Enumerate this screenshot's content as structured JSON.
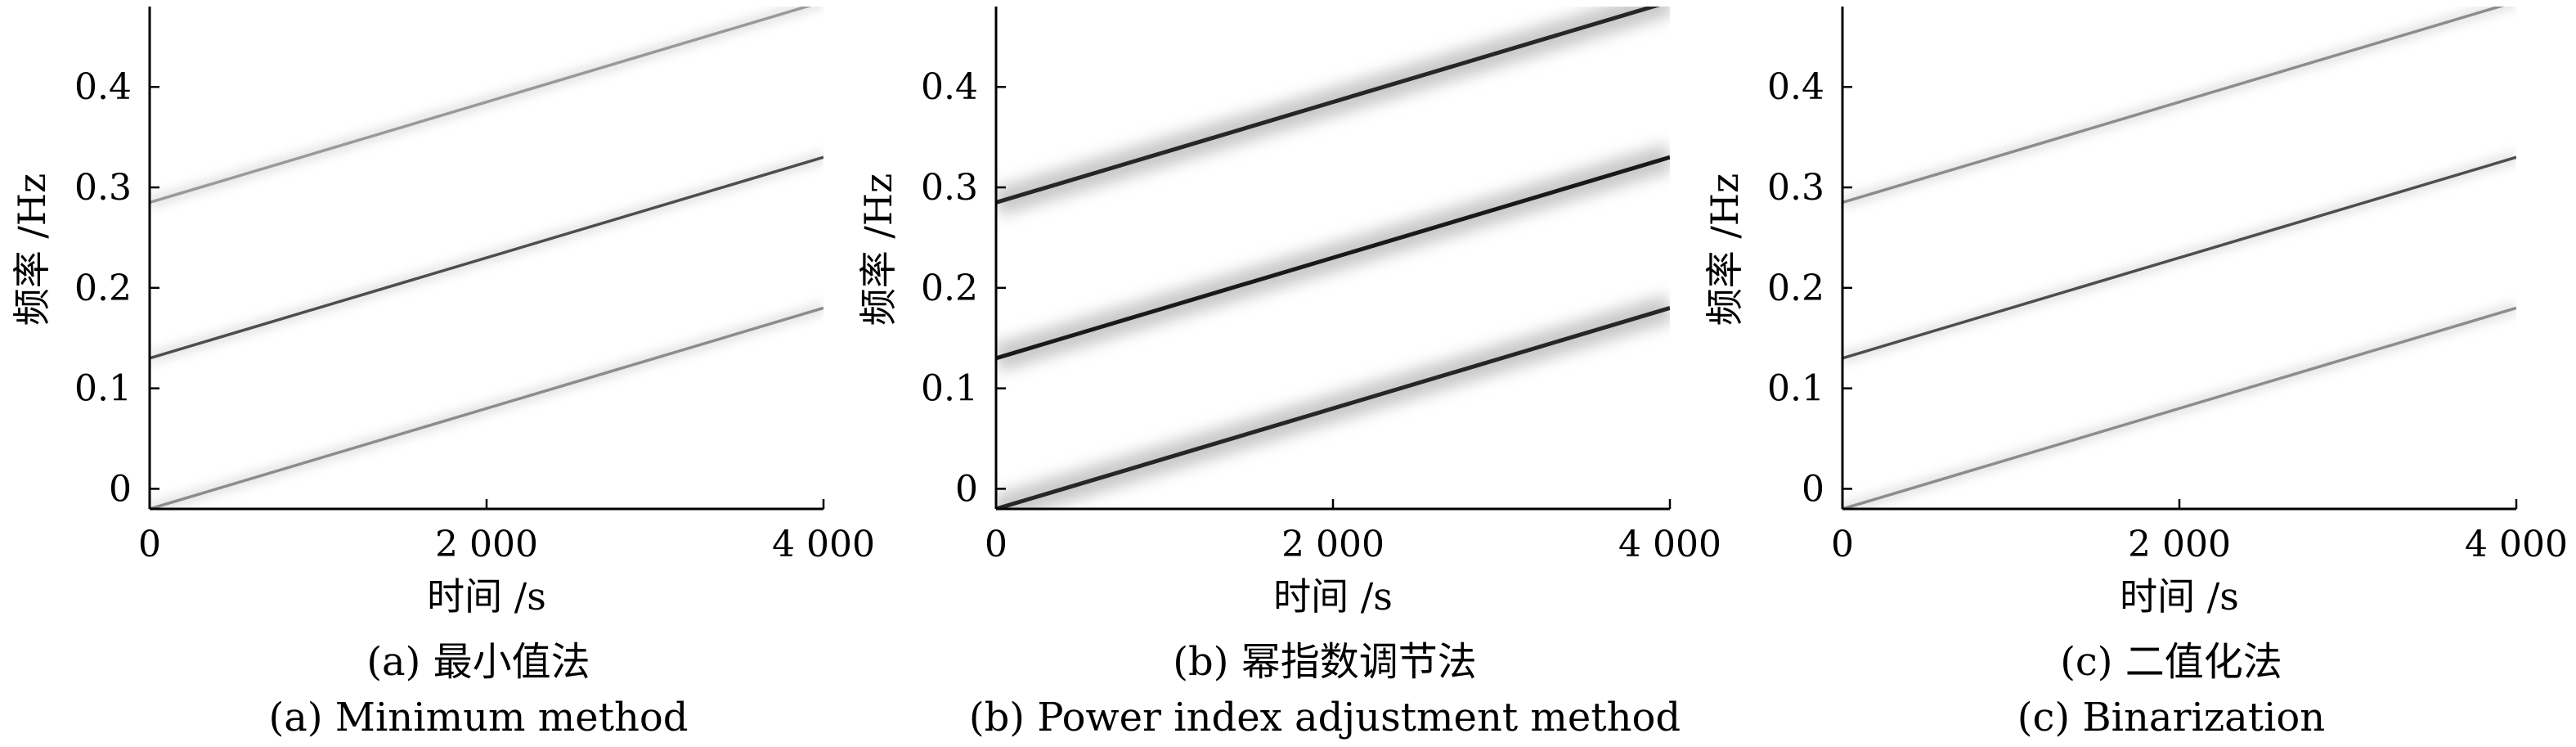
{
  "chart_data": [
    {
      "type": "line",
      "panel": "a",
      "caption_cn": "(a) 最小值法",
      "caption_en": "(a) Minimum method",
      "xlabel": "时间 /s",
      "ylabel": "频率 /Hz",
      "xlim": [
        0,
        4000
      ],
      "ylim": [
        -0.02,
        0.48
      ],
      "xticks": [
        0,
        2000,
        4000
      ],
      "xtick_labels": [
        "0",
        "2 000",
        "4 000"
      ],
      "yticks": [
        0,
        0.1,
        0.2,
        0.3,
        0.4
      ],
      "ytick_labels": [
        "0",
        "0.1",
        "0.2",
        "0.3",
        "0.4"
      ],
      "grid": false,
      "series": [
        {
          "x": [
            0,
            4000
          ],
          "y": [
            -0.02,
            0.18
          ],
          "intensity": 0.45
        },
        {
          "x": [
            0,
            4000
          ],
          "y": [
            0.13,
            0.33
          ],
          "intensity": 0.7
        },
        {
          "x": [
            0,
            4000
          ],
          "y": [
            0.285,
            0.485
          ],
          "intensity": 0.4
        }
      ]
    },
    {
      "type": "line",
      "panel": "b",
      "caption_cn": "(b) 幂指数调节法",
      "caption_en": "(b) Power index adjustment method",
      "xlabel": "时间 /s",
      "ylabel": "频率 /Hz",
      "xlim": [
        0,
        4000
      ],
      "ylim": [
        -0.02,
        0.48
      ],
      "xticks": [
        0,
        2000,
        4000
      ],
      "xtick_labels": [
        "0",
        "2 000",
        "4 000"
      ],
      "yticks": [
        0,
        0.1,
        0.2,
        0.3,
        0.4
      ],
      "ytick_labels": [
        "0",
        "0.1",
        "0.2",
        "0.3",
        "0.4"
      ],
      "grid": false,
      "series": [
        {
          "x": [
            0,
            4000
          ],
          "y": [
            -0.02,
            0.18
          ],
          "intensity": 0.85
        },
        {
          "x": [
            0,
            4000
          ],
          "y": [
            0.13,
            0.33
          ],
          "intensity": 0.9
        },
        {
          "x": [
            0,
            4000
          ],
          "y": [
            0.285,
            0.485
          ],
          "intensity": 0.85
        }
      ]
    },
    {
      "type": "line",
      "panel": "c",
      "caption_cn": "(c) 二值化法",
      "caption_en": "(c) Binarization",
      "xlabel": "时间 /s",
      "ylabel": "频率 /Hz",
      "xlim": [
        0,
        4000
      ],
      "ylim": [
        -0.02,
        0.48
      ],
      "xticks": [
        0,
        2000,
        4000
      ],
      "xtick_labels": [
        "0",
        "2 000",
        "4 000"
      ],
      "yticks": [
        0,
        0.1,
        0.2,
        0.3,
        0.4
      ],
      "ytick_labels": [
        "0",
        "0.1",
        "0.2",
        "0.3",
        "0.4"
      ],
      "grid": false,
      "series": [
        {
          "x": [
            0,
            4000
          ],
          "y": [
            -0.02,
            0.18
          ],
          "intensity": 0.45
        },
        {
          "x": [
            0,
            4000
          ],
          "y": [
            0.13,
            0.33
          ],
          "intensity": 0.7
        },
        {
          "x": [
            0,
            4000
          ],
          "y": [
            0.285,
            0.485
          ],
          "intensity": 0.45
        }
      ]
    }
  ]
}
